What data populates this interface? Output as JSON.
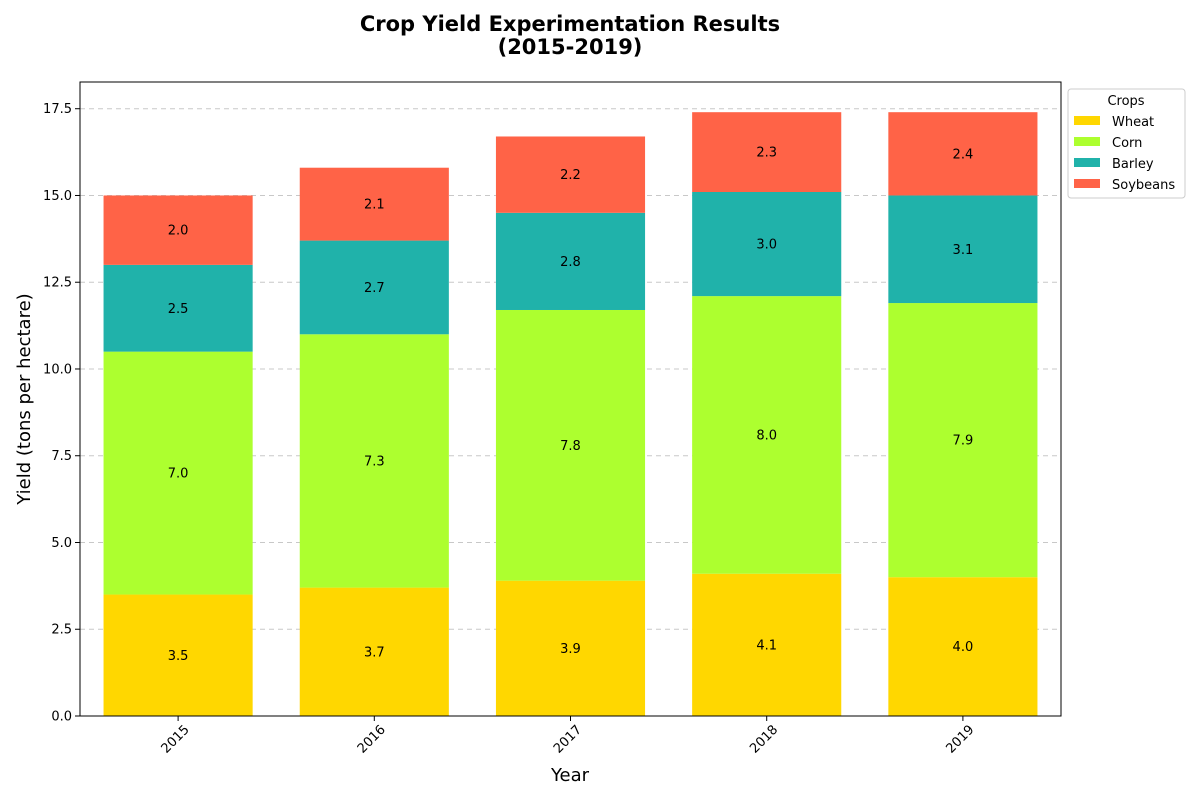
{
  "chart_data": {
    "type": "bar",
    "stacked": true,
    "title_line1": "Crop Yield Experimentation Results",
    "title_line2": "(2015-2019)",
    "xlabel": "Year",
    "ylabel": "Yield (tons per hectare)",
    "categories": [
      "2015",
      "2016",
      "2017",
      "2018",
      "2019"
    ],
    "series": [
      {
        "name": "Wheat",
        "color": "#FFD700",
        "values": [
          3.5,
          3.7,
          3.9,
          4.1,
          4.0
        ],
        "labels": [
          "3.5",
          "3.7",
          "3.9",
          "4.1",
          "4.0"
        ]
      },
      {
        "name": "Corn",
        "color": "#ADFF2F",
        "values": [
          7.0,
          7.3,
          7.8,
          8.0,
          7.9
        ],
        "labels": [
          "7.0",
          "7.3",
          "7.8",
          "8.0",
          "7.9"
        ]
      },
      {
        "name": "Barley",
        "color": "#20B2AA",
        "values": [
          2.5,
          2.7,
          2.8,
          3.0,
          3.1
        ],
        "labels": [
          "2.5",
          "2.7",
          "2.8",
          "3.0",
          "3.1"
        ]
      },
      {
        "name": "Soybeans",
        "color": "#FF6347",
        "values": [
          2.0,
          2.1,
          2.2,
          2.3,
          2.4
        ],
        "labels": [
          "2.0",
          "2.1",
          "2.2",
          "2.3",
          "2.4"
        ]
      }
    ],
    "ylim": [
      0,
      18.27
    ],
    "yticks": [
      "0.0",
      "2.5",
      "5.0",
      "7.5",
      "10.0",
      "12.5",
      "15.0",
      "17.5"
    ],
    "ytick_values": [
      0,
      2.5,
      5.0,
      7.5,
      10.0,
      12.5,
      15.0,
      17.5
    ],
    "grid": "horizontal dashed",
    "legend_title": "Crops",
    "legend_placement": "upper-right-outside"
  }
}
